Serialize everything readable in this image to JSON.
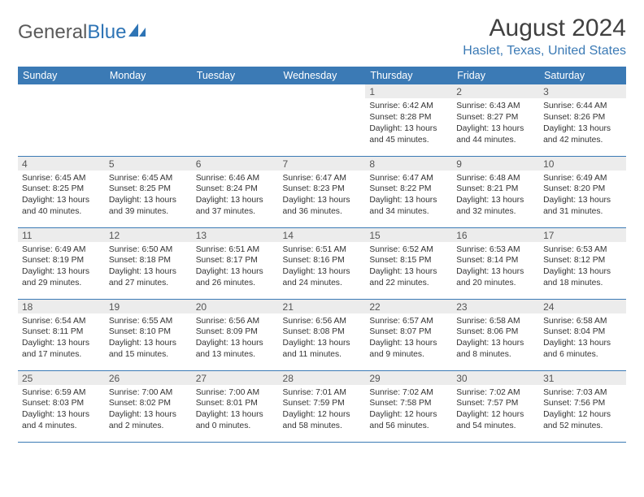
{
  "brand": {
    "part1": "General",
    "part2": "Blue"
  },
  "title": "August 2024",
  "location": "Haslet, Texas, United States",
  "colors": {
    "header_bg": "#3b7ab5",
    "header_text": "#ffffff",
    "daynum_bg": "#ececec",
    "daynum_text": "#555555",
    "body_text": "#333333",
    "row_border": "#3b7ab5",
    "title_text": "#404040",
    "location_text": "#3b7ab5"
  },
  "weekdays": [
    "Sunday",
    "Monday",
    "Tuesday",
    "Wednesday",
    "Thursday",
    "Friday",
    "Saturday"
  ],
  "weeks": [
    [
      null,
      null,
      null,
      null,
      {
        "n": "1",
        "sr": "Sunrise: 6:42 AM",
        "ss": "Sunset: 8:28 PM",
        "d1": "Daylight: 13 hours",
        "d2": "and 45 minutes."
      },
      {
        "n": "2",
        "sr": "Sunrise: 6:43 AM",
        "ss": "Sunset: 8:27 PM",
        "d1": "Daylight: 13 hours",
        "d2": "and 44 minutes."
      },
      {
        "n": "3",
        "sr": "Sunrise: 6:44 AM",
        "ss": "Sunset: 8:26 PM",
        "d1": "Daylight: 13 hours",
        "d2": "and 42 minutes."
      }
    ],
    [
      {
        "n": "4",
        "sr": "Sunrise: 6:45 AM",
        "ss": "Sunset: 8:25 PM",
        "d1": "Daylight: 13 hours",
        "d2": "and 40 minutes."
      },
      {
        "n": "5",
        "sr": "Sunrise: 6:45 AM",
        "ss": "Sunset: 8:25 PM",
        "d1": "Daylight: 13 hours",
        "d2": "and 39 minutes."
      },
      {
        "n": "6",
        "sr": "Sunrise: 6:46 AM",
        "ss": "Sunset: 8:24 PM",
        "d1": "Daylight: 13 hours",
        "d2": "and 37 minutes."
      },
      {
        "n": "7",
        "sr": "Sunrise: 6:47 AM",
        "ss": "Sunset: 8:23 PM",
        "d1": "Daylight: 13 hours",
        "d2": "and 36 minutes."
      },
      {
        "n": "8",
        "sr": "Sunrise: 6:47 AM",
        "ss": "Sunset: 8:22 PM",
        "d1": "Daylight: 13 hours",
        "d2": "and 34 minutes."
      },
      {
        "n": "9",
        "sr": "Sunrise: 6:48 AM",
        "ss": "Sunset: 8:21 PM",
        "d1": "Daylight: 13 hours",
        "d2": "and 32 minutes."
      },
      {
        "n": "10",
        "sr": "Sunrise: 6:49 AM",
        "ss": "Sunset: 8:20 PM",
        "d1": "Daylight: 13 hours",
        "d2": "and 31 minutes."
      }
    ],
    [
      {
        "n": "11",
        "sr": "Sunrise: 6:49 AM",
        "ss": "Sunset: 8:19 PM",
        "d1": "Daylight: 13 hours",
        "d2": "and 29 minutes."
      },
      {
        "n": "12",
        "sr": "Sunrise: 6:50 AM",
        "ss": "Sunset: 8:18 PM",
        "d1": "Daylight: 13 hours",
        "d2": "and 27 minutes."
      },
      {
        "n": "13",
        "sr": "Sunrise: 6:51 AM",
        "ss": "Sunset: 8:17 PM",
        "d1": "Daylight: 13 hours",
        "d2": "and 26 minutes."
      },
      {
        "n": "14",
        "sr": "Sunrise: 6:51 AM",
        "ss": "Sunset: 8:16 PM",
        "d1": "Daylight: 13 hours",
        "d2": "and 24 minutes."
      },
      {
        "n": "15",
        "sr": "Sunrise: 6:52 AM",
        "ss": "Sunset: 8:15 PM",
        "d1": "Daylight: 13 hours",
        "d2": "and 22 minutes."
      },
      {
        "n": "16",
        "sr": "Sunrise: 6:53 AM",
        "ss": "Sunset: 8:14 PM",
        "d1": "Daylight: 13 hours",
        "d2": "and 20 minutes."
      },
      {
        "n": "17",
        "sr": "Sunrise: 6:53 AM",
        "ss": "Sunset: 8:12 PM",
        "d1": "Daylight: 13 hours",
        "d2": "and 18 minutes."
      }
    ],
    [
      {
        "n": "18",
        "sr": "Sunrise: 6:54 AM",
        "ss": "Sunset: 8:11 PM",
        "d1": "Daylight: 13 hours",
        "d2": "and 17 minutes."
      },
      {
        "n": "19",
        "sr": "Sunrise: 6:55 AM",
        "ss": "Sunset: 8:10 PM",
        "d1": "Daylight: 13 hours",
        "d2": "and 15 minutes."
      },
      {
        "n": "20",
        "sr": "Sunrise: 6:56 AM",
        "ss": "Sunset: 8:09 PM",
        "d1": "Daylight: 13 hours",
        "d2": "and 13 minutes."
      },
      {
        "n": "21",
        "sr": "Sunrise: 6:56 AM",
        "ss": "Sunset: 8:08 PM",
        "d1": "Daylight: 13 hours",
        "d2": "and 11 minutes."
      },
      {
        "n": "22",
        "sr": "Sunrise: 6:57 AM",
        "ss": "Sunset: 8:07 PM",
        "d1": "Daylight: 13 hours",
        "d2": "and 9 minutes."
      },
      {
        "n": "23",
        "sr": "Sunrise: 6:58 AM",
        "ss": "Sunset: 8:06 PM",
        "d1": "Daylight: 13 hours",
        "d2": "and 8 minutes."
      },
      {
        "n": "24",
        "sr": "Sunrise: 6:58 AM",
        "ss": "Sunset: 8:04 PM",
        "d1": "Daylight: 13 hours",
        "d2": "and 6 minutes."
      }
    ],
    [
      {
        "n": "25",
        "sr": "Sunrise: 6:59 AM",
        "ss": "Sunset: 8:03 PM",
        "d1": "Daylight: 13 hours",
        "d2": "and 4 minutes."
      },
      {
        "n": "26",
        "sr": "Sunrise: 7:00 AM",
        "ss": "Sunset: 8:02 PM",
        "d1": "Daylight: 13 hours",
        "d2": "and 2 minutes."
      },
      {
        "n": "27",
        "sr": "Sunrise: 7:00 AM",
        "ss": "Sunset: 8:01 PM",
        "d1": "Daylight: 13 hours",
        "d2": "and 0 minutes."
      },
      {
        "n": "28",
        "sr": "Sunrise: 7:01 AM",
        "ss": "Sunset: 7:59 PM",
        "d1": "Daylight: 12 hours",
        "d2": "and 58 minutes."
      },
      {
        "n": "29",
        "sr": "Sunrise: 7:02 AM",
        "ss": "Sunset: 7:58 PM",
        "d1": "Daylight: 12 hours",
        "d2": "and 56 minutes."
      },
      {
        "n": "30",
        "sr": "Sunrise: 7:02 AM",
        "ss": "Sunset: 7:57 PM",
        "d1": "Daylight: 12 hours",
        "d2": "and 54 minutes."
      },
      {
        "n": "31",
        "sr": "Sunrise: 7:03 AM",
        "ss": "Sunset: 7:56 PM",
        "d1": "Daylight: 12 hours",
        "d2": "and 52 minutes."
      }
    ]
  ]
}
